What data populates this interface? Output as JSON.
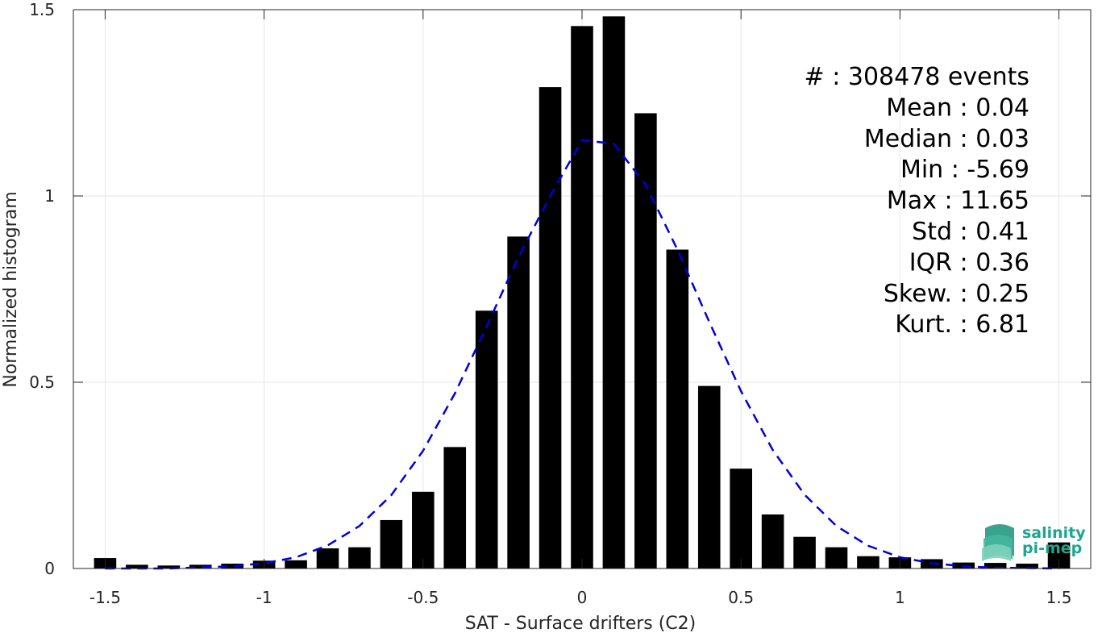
{
  "chart_data": {
    "type": "bar",
    "xlabel": "SAT - Surface drifters (C2)",
    "ylabel": "Normalized histogram",
    "xlim": [
      -1.6,
      1.6
    ],
    "ylim": [
      0,
      1.5
    ],
    "xticks": [
      -1.5,
      -1,
      -0.5,
      0,
      0.5,
      1,
      1.5
    ],
    "xtick_labels": [
      "-1.5",
      "-1",
      "-0.5",
      "0",
      "0.5",
      "1",
      "1.5"
    ],
    "yticks": [
      0,
      0.5,
      1,
      1.5
    ],
    "ytick_labels": [
      "0",
      "0.5",
      "1",
      "1.5"
    ],
    "grid": true,
    "bar_width": 0.07,
    "bar_color": "#000000",
    "fit_color": "#0000dd",
    "x": [
      -1.5,
      -1.4,
      -1.3,
      -1.2,
      -1.1,
      -1.0,
      -0.9,
      -0.8,
      -0.7,
      -0.6,
      -0.5,
      -0.4,
      -0.3,
      -0.2,
      -0.1,
      0.0,
      0.1,
      0.2,
      0.3,
      0.4,
      0.5,
      0.6,
      0.7,
      0.8,
      0.9,
      1.0,
      1.1,
      1.2,
      1.3,
      1.4,
      1.5
    ],
    "values": [
      0.028,
      0.01,
      0.008,
      0.01,
      0.013,
      0.021,
      0.022,
      0.054,
      0.057,
      0.13,
      0.206,
      0.326,
      0.692,
      0.891,
      1.292,
      1.456,
      1.482,
      1.222,
      0.856,
      0.49,
      0.268,
      0.145,
      0.085,
      0.057,
      0.033,
      0.03,
      0.025,
      0.016,
      0.015,
      0.013,
      0.07
    ],
    "fit": {
      "name": "",
      "style": "dashed",
      "x": [
        -1.5,
        -1.4,
        -1.3,
        -1.2,
        -1.1,
        -1.0,
        -0.9,
        -0.8,
        -0.7,
        -0.6,
        -0.5,
        -0.4,
        -0.3,
        -0.2,
        -0.1,
        0.0,
        0.1,
        0.2,
        0.3,
        0.4,
        0.5,
        0.6,
        0.7,
        0.8,
        0.9,
        1.0,
        1.1,
        1.2,
        1.3,
        1.4,
        1.5
      ],
      "y": [
        0.0,
        0.0,
        0.0,
        0.003,
        0.006,
        0.014,
        0.03,
        0.062,
        0.114,
        0.197,
        0.316,
        0.47,
        0.65,
        0.836,
        1.0,
        1.15,
        1.14,
        1.03,
        0.856,
        0.662,
        0.476,
        0.318,
        0.198,
        0.114,
        0.061,
        0.03,
        0.014,
        0.006,
        0.002,
        0.001,
        0.0
      ]
    },
    "stats_lines": [
      "#  : 308478 events",
      "Mean : 0.04",
      "Median : 0.03",
      "Min : -5.69",
      "Max : 11.65",
      "Std : 0.41",
      "IQR : 0.36",
      "Skew. : 0.25",
      "Kurt. : 6.81"
    ]
  },
  "logo": {
    "line1": "salinity",
    "line2": "pi-mep",
    "color": "#1fa58f"
  }
}
